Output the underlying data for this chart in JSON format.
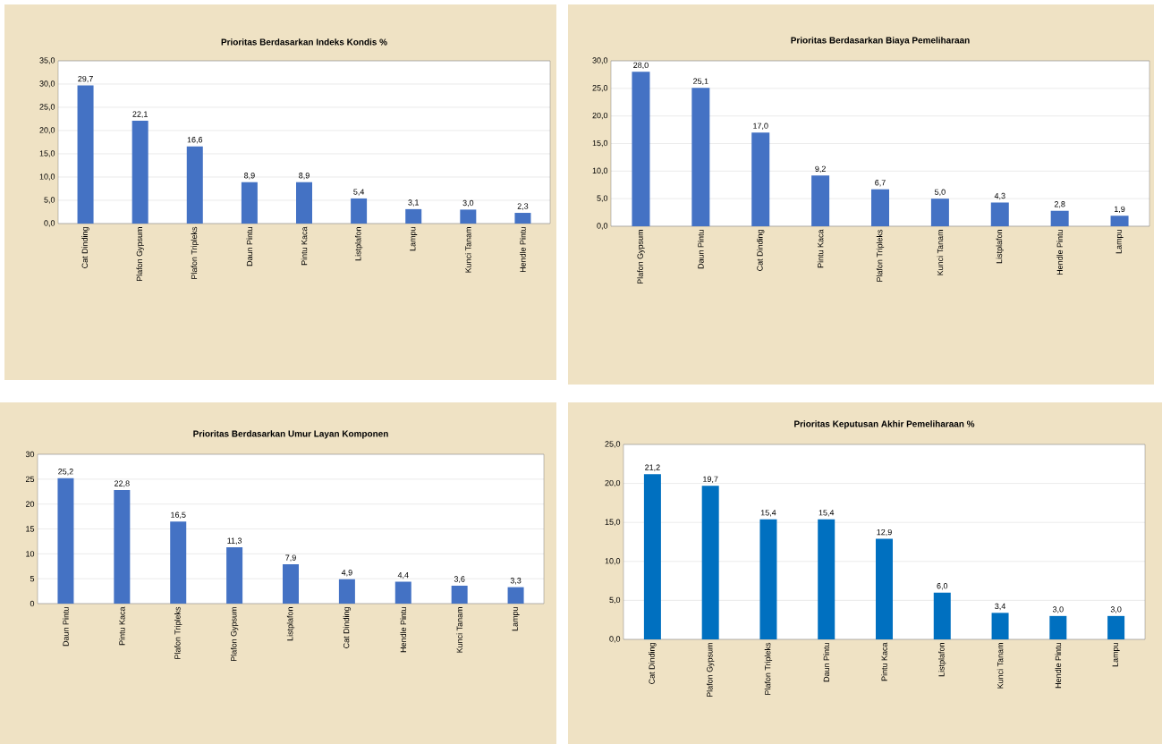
{
  "chart_data": [
    {
      "type": "bar",
      "title": "Prioritas Berdasarkan Indeks Kondis %",
      "categories": [
        "Cat Dinding",
        "Plafon Gypsum",
        "Plafon Tripleks",
        "Daun Pintu",
        "Pintu Kaca",
        "Listplafon",
        "Lampu",
        "Kunci Tanam",
        "Hendle Pintu"
      ],
      "values": [
        29.7,
        22.1,
        16.6,
        8.9,
        8.9,
        5.4,
        3.1,
        3.0,
        2.3
      ],
      "value_labels": [
        "29,7",
        "22,1",
        "16,6",
        "8,9",
        "8,9",
        "5,4",
        "3,1",
        "3,0",
        "2,3"
      ],
      "color": "#4472c4",
      "ylim": [
        0,
        35
      ],
      "yticks": [
        {
          "value": 0,
          "label": "0,0"
        },
        {
          "value": 5,
          "label": "5,0"
        },
        {
          "value": 10,
          "label": "10,0"
        },
        {
          "value": 15,
          "label": "15,0"
        },
        {
          "value": 20,
          "label": "20,0"
        },
        {
          "value": 25,
          "label": "25,0"
        },
        {
          "value": 30,
          "label": "30,0"
        },
        {
          "value": 35,
          "label": "35,0"
        }
      ],
      "grid": "y"
    },
    {
      "type": "bar",
      "title": "Prioritas Berdasarkan Biaya Pemeliharaan",
      "categories": [
        "Plafon Gypsum",
        "Daun Pintu",
        "Cat Dinding",
        "Pintu Kaca",
        "Plafon Tripleks",
        "Kunci Tanam",
        "Listplafon",
        "Hendle Pintu",
        "Lampu"
      ],
      "values": [
        28.0,
        25.1,
        17.0,
        9.2,
        6.7,
        5.0,
        4.3,
        2.8,
        1.9
      ],
      "value_labels": [
        "28,0",
        "25,1",
        "17,0",
        "9,2",
        "6,7",
        "5,0",
        "4,3",
        "2,8",
        "1,9"
      ],
      "color": "#4472c4",
      "ylim": [
        0,
        30
      ],
      "yticks": [
        {
          "value": 0,
          "label": "0,0"
        },
        {
          "value": 5,
          "label": "5,0"
        },
        {
          "value": 10,
          "label": "10,0"
        },
        {
          "value": 15,
          "label": "15,0"
        },
        {
          "value": 20,
          "label": "20,0"
        },
        {
          "value": 25,
          "label": "25,0"
        },
        {
          "value": 30,
          "label": "30,0"
        }
      ],
      "grid": "y"
    },
    {
      "type": "bar",
      "title": "Prioritas Berdasarkan Umur Layan Komponen",
      "categories": [
        "Daun Pintu",
        "Pintu Kaca",
        "Plafon Tripleks",
        "Plafon Gypsum",
        "Listplafon",
        "Cat Dinding",
        "Hendle Pintu",
        "Kunci Tanam",
        "Lampu"
      ],
      "values": [
        25.2,
        22.8,
        16.5,
        11.3,
        7.9,
        4.9,
        4.4,
        3.6,
        3.3
      ],
      "value_labels": [
        "25,2",
        "22,8",
        "16,5",
        "11,3",
        "7,9",
        "4,9",
        "4,4",
        "3,6",
        "3,3"
      ],
      "color": "#4472c4",
      "ylim": [
        0,
        30
      ],
      "yticks": [
        0,
        5,
        10,
        15,
        20,
        25,
        30
      ],
      "grid": "y"
    },
    {
      "type": "bar",
      "title": "Prioritas Keputusan Akhir Pemeliharaan %",
      "categories": [
        "Cat Dinding",
        "Plafon Gypsum",
        "Plafon Tripleks",
        "Daun Pintu",
        "Pintu Kaca",
        "Listplafon",
        "Kunci Tanam",
        "Hendle Pintu",
        "Lampu"
      ],
      "values": [
        21.2,
        19.7,
        15.4,
        15.4,
        12.9,
        6.0,
        3.4,
        3.0,
        3.0
      ],
      "value_labels": [
        "21,2",
        "19,7",
        "15,4",
        "15,4",
        "12,9",
        "6,0",
        "3,4",
        "3,0",
        "3,0"
      ],
      "color": "#0070c0",
      "ylim": [
        0,
        25
      ],
      "yticks": [
        {
          "value": 0,
          "label": "0,0"
        },
        {
          "value": 5,
          "label": "5,0"
        },
        {
          "value": 10,
          "label": "10,0"
        },
        {
          "value": 15,
          "label": "15,0"
        },
        {
          "value": 20,
          "label": "20,0"
        },
        {
          "value": 25,
          "label": "25,0"
        }
      ],
      "grid": "y"
    }
  ]
}
